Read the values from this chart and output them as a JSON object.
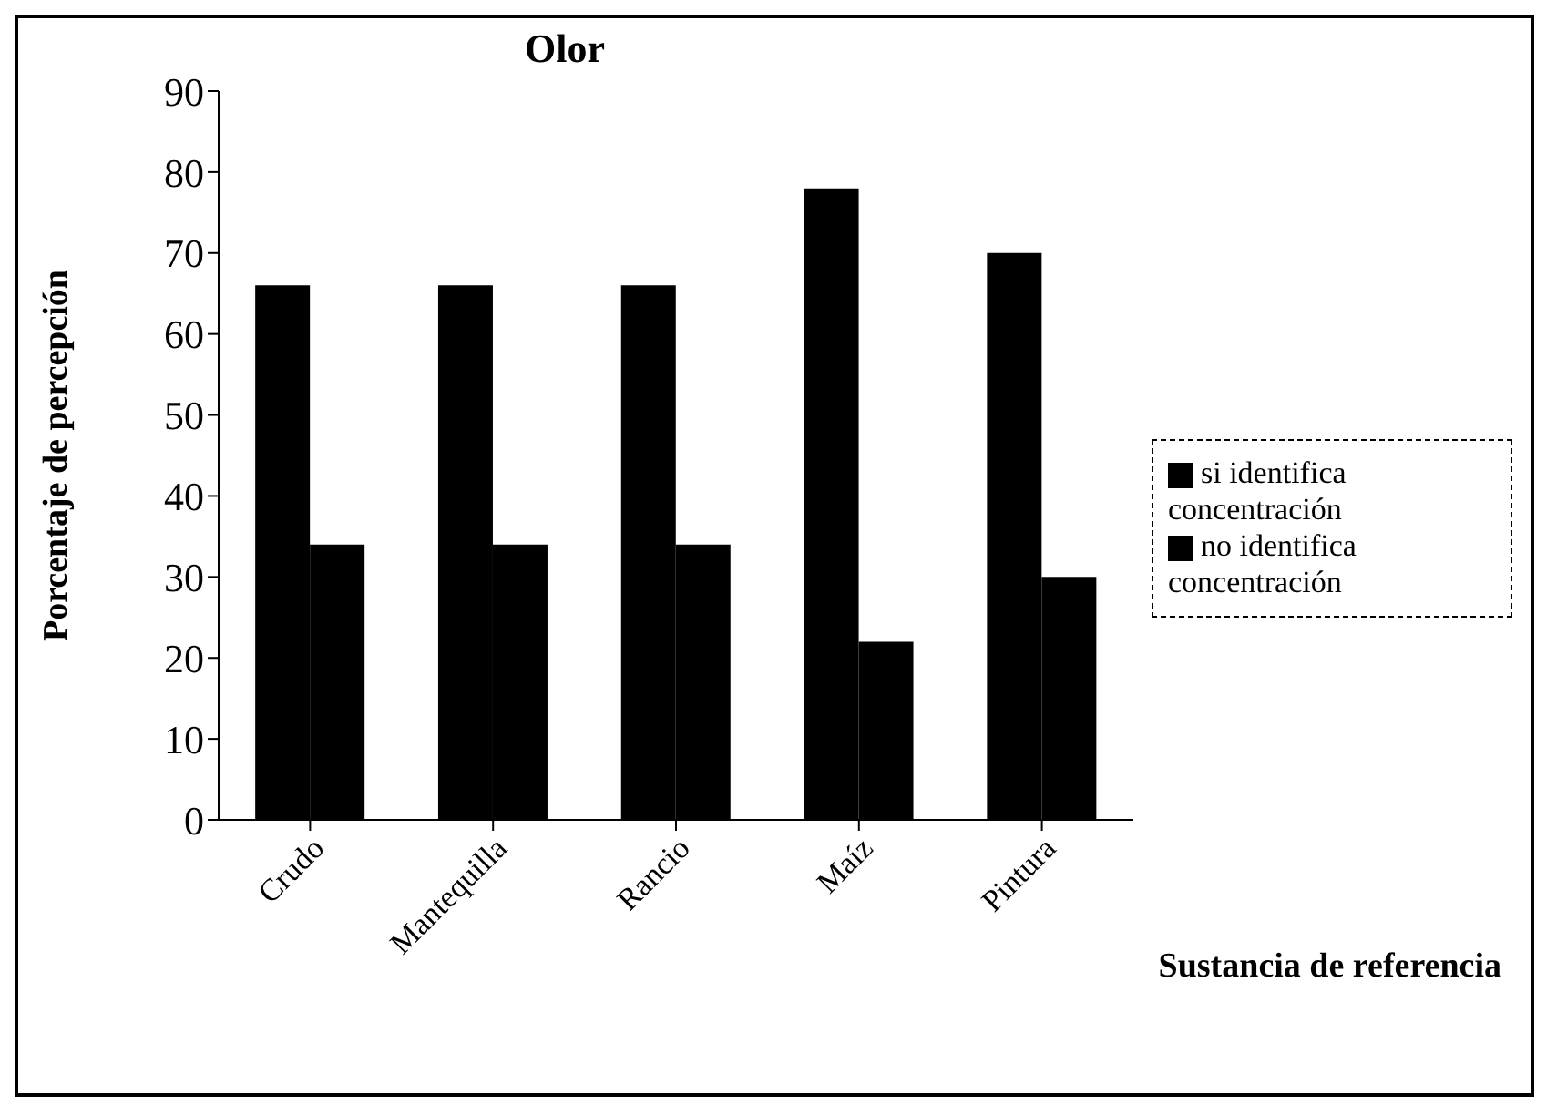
{
  "chart_data": {
    "type": "bar",
    "title": "Olor",
    "xlabel": "Sustancia de referencia",
    "ylabel": "Porcentaje de percepción",
    "categories": [
      "Crudo",
      "Mantequilla",
      "Rancio",
      "Maíz",
      "Pintura"
    ],
    "series": [
      {
        "name": "si identifica concentración",
        "color": "#000000",
        "values": [
          66,
          66,
          66,
          78,
          70
        ]
      },
      {
        "name": "no identifica concentración",
        "color": "#000000",
        "values": [
          34,
          34,
          34,
          22,
          30
        ]
      }
    ],
    "ylim": [
      0,
      90
    ],
    "yticks": [
      0,
      10,
      20,
      30,
      40,
      50,
      60,
      70,
      80,
      90
    ],
    "grid": false,
    "legend": "right"
  }
}
